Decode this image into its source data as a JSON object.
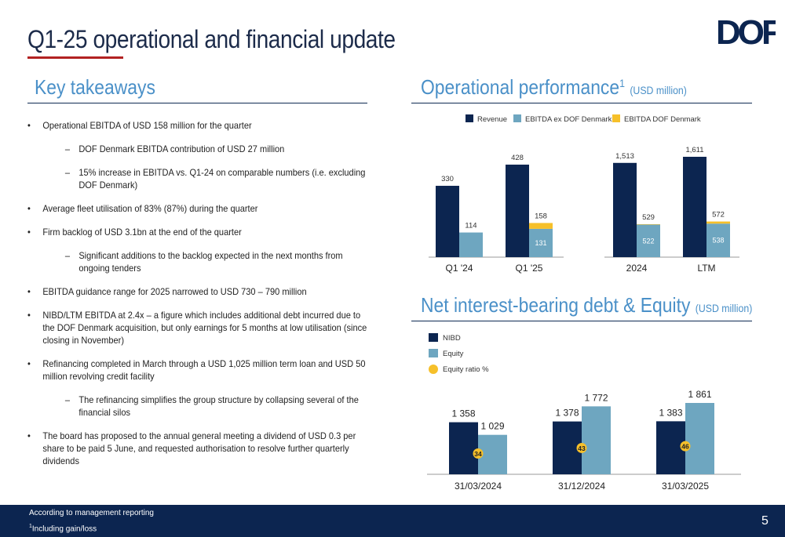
{
  "page": {
    "title": "Q1-25 operational and financial update",
    "page_number": "5",
    "footer_note_1": "According to management reporting",
    "footer_note_2_sup": "1",
    "footer_note_2": "Including gain/loss",
    "logo_text": "DOF"
  },
  "colors": {
    "navy": "#0c2550",
    "steel": "#6ea6c0",
    "gold": "#f6c02a",
    "heading_blue": "#4a90c8",
    "accent_red": "#b22222"
  },
  "takeaways": {
    "heading": "Key takeaways",
    "items": [
      {
        "level": 1,
        "text": "Operational EBITDA of USD 158 million for the quarter"
      },
      {
        "level": 2,
        "text": "DOF Denmark EBITDA contribution of USD 27 million"
      },
      {
        "level": 2,
        "text": "15% increase in EBITDA vs. Q1-24 on comparable numbers (i.e. excluding DOF Denmark)"
      },
      {
        "level": 1,
        "text": "Average fleet utilisation of 83% (87%) during the quarter"
      },
      {
        "level": 1,
        "text": "Firm backlog of USD 3.1bn at the end of the quarter"
      },
      {
        "level": 2,
        "text": "Significant additions to the backlog expected in the next months from ongoing tenders"
      },
      {
        "level": 1,
        "text": "EBITDA guidance range for 2025 narrowed to USD 730 – 790 million"
      },
      {
        "level": 1,
        "text": "NIBD/LTM EBITDA at 2.4x – a figure which includes additional debt incurred due to the DOF Denmark acquisition, but only earnings for 5 months at low utilisation (since closing in November)"
      },
      {
        "level": 1,
        "text": "Refinancing completed in March through a USD 1,025 million term loan and USD 50 million revolving credit facility"
      },
      {
        "level": 2,
        "text": "The refinancing simplifies the group structure by collapsing several of the financial silos"
      },
      {
        "level": 1,
        "text": "The board has proposed to the annual general meeting a dividend of USD 0.3 per share to be paid 5 June, and requested authorisation to resolve further quarterly dividends"
      }
    ]
  },
  "chart_data": [
    {
      "type": "bar",
      "title": "Operational performance",
      "title_sup": "1",
      "unit": "(USD million)",
      "legend": [
        "Revenue",
        "EBITDA ex DOF Denmark",
        "EBITDA DOF Denmark"
      ],
      "legend_position": "top",
      "groups": [
        {
          "categories": [
            "Q1 '24",
            "Q1 '25"
          ]
        },
        {
          "categories": [
            "2024",
            "LTM"
          ]
        }
      ],
      "categories": [
        "Q1 '24",
        "Q1 '25",
        "2024",
        "LTM"
      ],
      "series": [
        {
          "name": "Revenue",
          "values": [
            330,
            428,
            1513,
            1611
          ],
          "labels": [
            "330",
            "428",
            "1,513",
            "1,611"
          ]
        },
        {
          "name": "EBITDA ex DOF Denmark",
          "values": [
            114,
            131,
            522,
            538
          ],
          "labels": [
            "114",
            "131",
            "522",
            "538"
          ]
        },
        {
          "name": "EBITDA DOF Denmark",
          "values": [
            0,
            27,
            7,
            34
          ]
        }
      ],
      "ebitda_totals": [
        "114",
        "158",
        "529",
        "572"
      ],
      "ylim_quarter": [
        0,
        470
      ],
      "ylim_annual": [
        0,
        1750
      ]
    },
    {
      "type": "bar",
      "title": "Net interest-bearing debt & Equity",
      "unit": "(USD million)",
      "legend": [
        "NIBD",
        "Equity",
        "Equity ratio %"
      ],
      "legend_position": "top-left",
      "categories": [
        "31/03/2024",
        "31/12/2024",
        "31/03/2025"
      ],
      "series": [
        {
          "name": "NIBD",
          "values": [
            1358,
            1378,
            1383
          ],
          "labels": [
            "1 358",
            "1 378",
            "1 383"
          ]
        },
        {
          "name": "Equity",
          "values": [
            1029,
            1772,
            1861
          ],
          "labels": [
            "1 029",
            "1 772",
            "1 861"
          ]
        },
        {
          "name": "Equity ratio %",
          "values": [
            34,
            43,
            46
          ],
          "labels": [
            "34",
            "43",
            "46"
          ]
        }
      ],
      "ylim": [
        0,
        2000
      ]
    }
  ]
}
